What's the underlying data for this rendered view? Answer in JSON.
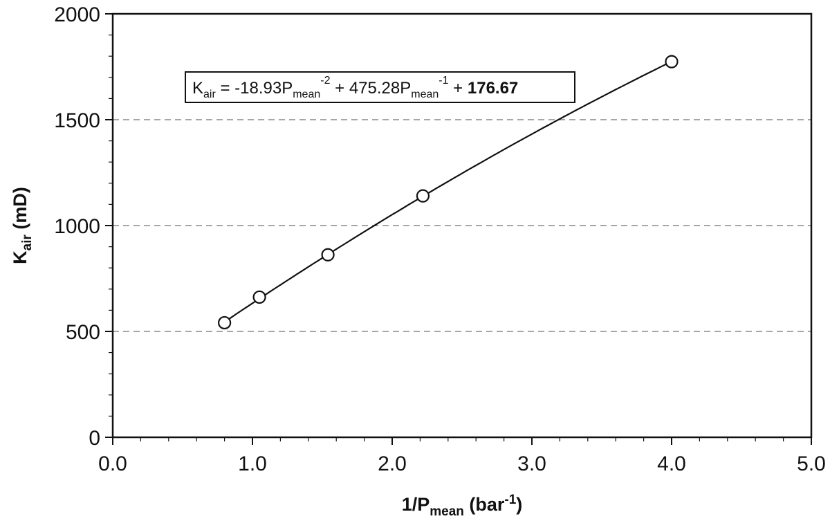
{
  "chart_data": {
    "type": "scatter",
    "title": "",
    "xlabel": {
      "base": "1/P",
      "sub": "mean",
      "rest": " (bar",
      "sup": "-1",
      "end": ")"
    },
    "ylabel": {
      "base": "K",
      "sub": "air",
      "rest": " (mD)"
    },
    "xlim": [
      0,
      5
    ],
    "ylim": [
      0,
      2000
    ],
    "x_ticks": [
      "0.0",
      "1.0",
      "2.0",
      "3.0",
      "4.0",
      "5.0"
    ],
    "y_ticks": [
      "0",
      "500",
      "1000",
      "1500",
      "2000"
    ],
    "gridlines_y": [
      500,
      1000,
      1500
    ],
    "grid": "horizontal dashed",
    "series": [
      {
        "x": [
          0.8,
          1.05,
          1.54,
          2.22,
          4.0
        ],
        "y": [
          541,
          662,
          862,
          1140,
          1774
        ]
      }
    ],
    "fit_curve": {
      "coefficients": {
        "a": -18.93,
        "b": 475.28,
        "c": 176.67
      },
      "x_range": [
        0.8,
        4.0
      ]
    },
    "annotation": {
      "k": "K",
      "k_sub": "air",
      "eq": " = -18.93P",
      "p1_sub": "mean",
      "p1_sup": "-2",
      "mid": " + 475.28P",
      "p2_sub": "mean",
      "p2_sup": "-1",
      "plus": " + ",
      "const": "176.67"
    },
    "colors": {
      "line": "#111111",
      "grid": "#999999",
      "marker": "#111111"
    }
  }
}
